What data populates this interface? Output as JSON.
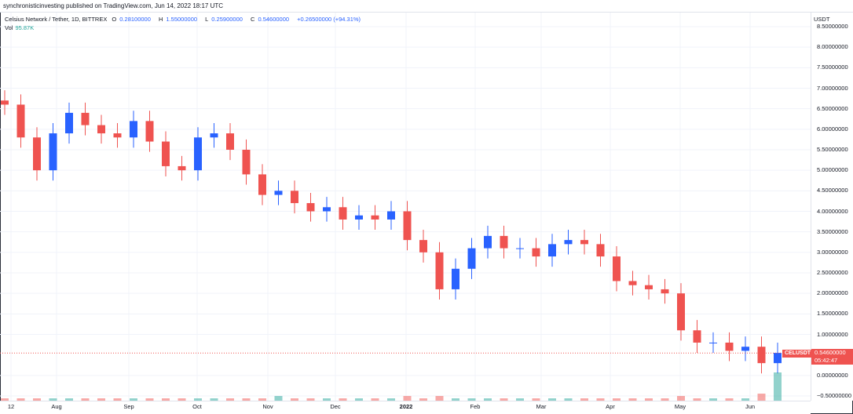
{
  "header": {
    "published_text": "synchronisticinvesting published on TradingView.com, Jun 14, 2022 18:17 UTC"
  },
  "legend": {
    "symbol": "Celsius Network / Tether, 1D, BITTREX",
    "open_label": "O",
    "open": "0.28100000",
    "high_label": "H",
    "high": "1.55000000",
    "low_label": "L",
    "low": "0.25900000",
    "close_label": "C",
    "close": "0.54600000",
    "change": "+0.26500000 (+94.31%)",
    "vol_label": "Vol",
    "vol_value": "95.87K"
  },
  "price_axis": {
    "unit": "USDT",
    "ticks": [
      "8.50000000",
      "8.00000000",
      "7.50000000",
      "7.00000000",
      "6.50000000",
      "6.00000000",
      "5.50000000",
      "5.00000000",
      "4.50000000",
      "4.00000000",
      "3.50000000",
      "3.00000000",
      "2.50000000",
      "2.00000000",
      "1.50000000",
      "1.00000000",
      "0.00000000",
      "−0.50000000"
    ]
  },
  "time_axis": {
    "ticks": [
      "12",
      "Aug",
      "Sep",
      "Oct",
      "Nov",
      "Dec",
      "2022",
      "Feb",
      "Mar",
      "Apr",
      "May",
      "Jun"
    ]
  },
  "last_price": {
    "symbol_tag": "CELUSDT",
    "price": "0.54600000",
    "countdown": "05:42:47"
  },
  "colors": {
    "up": "#2962ff",
    "down": "#ef5350",
    "volume_up": "#26a69a",
    "volume_down": "#ef5350",
    "grid": "#f0f3fa"
  },
  "chart_data": {
    "type": "candlestick",
    "title": "Celsius Network / Tether, 1D, BITTREX",
    "ylim": [
      -0.5,
      8.5
    ],
    "x": [
      "2021-07-12",
      "2021-07-19",
      "2021-07-26",
      "2021-08-02",
      "2021-08-09",
      "2021-08-16",
      "2021-08-23",
      "2021-08-30",
      "2021-09-06",
      "2021-09-13",
      "2021-09-20",
      "2021-09-27",
      "2021-10-04",
      "2021-10-11",
      "2021-10-18",
      "2021-10-25",
      "2021-11-01",
      "2021-11-08",
      "2021-11-15",
      "2021-11-22",
      "2021-11-29",
      "2021-12-06",
      "2021-12-13",
      "2021-12-20",
      "2021-12-27",
      "2022-01-03",
      "2022-01-10",
      "2022-01-17",
      "2022-01-24",
      "2022-01-31",
      "2022-02-07",
      "2022-02-14",
      "2022-02-21",
      "2022-02-28",
      "2022-03-07",
      "2022-03-14",
      "2022-03-21",
      "2022-03-28",
      "2022-04-04",
      "2022-04-11",
      "2022-04-18",
      "2022-04-25",
      "2022-05-02",
      "2022-05-09",
      "2022-05-16",
      "2022-05-23",
      "2022-05-30",
      "2022-06-06",
      "2022-06-13"
    ],
    "close": [
      6.6,
      5.8,
      5.0,
      5.9,
      6.4,
      6.1,
      5.9,
      5.8,
      6.2,
      5.7,
      5.1,
      5.0,
      5.8,
      5.9,
      5.5,
      4.9,
      4.4,
      4.5,
      4.2,
      4.0,
      4.1,
      3.8,
      3.9,
      3.8,
      4.0,
      3.3,
      3.0,
      2.1,
      2.6,
      3.1,
      3.4,
      3.1,
      3.1,
      2.9,
      3.2,
      3.3,
      3.2,
      2.9,
      2.3,
      2.2,
      2.1,
      2.0,
      1.1,
      0.8,
      0.8,
      0.6,
      0.7,
      0.3,
      0.55
    ],
    "volume": [
      1,
      1,
      1,
      1,
      1,
      1,
      1,
      1,
      1,
      1,
      1,
      1,
      1,
      1,
      1,
      1,
      1,
      2,
      1,
      1,
      1,
      1,
      1,
      1,
      1,
      2,
      1,
      2,
      1,
      1,
      1,
      1,
      1,
      1,
      1,
      1,
      1,
      1,
      1,
      1,
      1,
      1,
      2,
      1,
      1,
      1,
      1,
      3,
      12
    ]
  }
}
